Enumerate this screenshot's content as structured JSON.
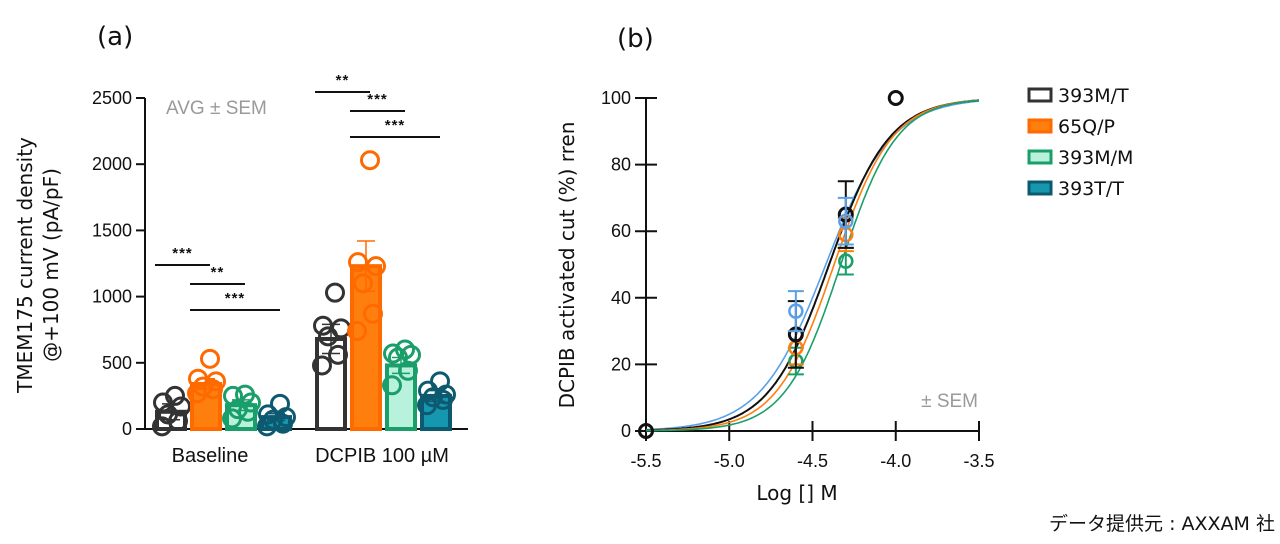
{
  "panels": {
    "a_label": "(a)",
    "b_label": "(b)"
  },
  "source_note": "データ提供元 : AXXAM 社",
  "legend": [
    {
      "label": "393M/T",
      "stroke": "#333333",
      "fill": "#ffffff"
    },
    {
      "label": "65Q/P",
      "stroke": "#ff6a00",
      "fill": "#ff7f0e"
    },
    {
      "label": "393M/M",
      "stroke": "#1a9e6a",
      "fill": "#b8f2dc"
    },
    {
      "label": "393T/T",
      "stroke": "#0d5a70",
      "fill": "#1597b0"
    }
  ],
  "chart_data": [
    {
      "type": "bar",
      "title": "(a)",
      "annotation": "AVG ± SEM",
      "xlabel": "",
      "ylabel_line1": "TMEM175 current density",
      "ylabel_line2": "@+100 mV (pA/pF)",
      "ylim": [
        0,
        2500
      ],
      "yticks": [
        0,
        500,
        1000,
        1500,
        2000,
        2500
      ],
      "categories": [
        "Baseline",
        "DCPIB 100 µM"
      ],
      "series": [
        {
          "name": "393M/T",
          "values": [
            130,
            680
          ],
          "sem": [
            60,
            110
          ],
          "points": [
            [
              20,
              60,
              110,
              170,
              200,
              250
            ],
            [
              480,
              560,
              700,
              760,
              780,
              1030
            ]
          ]
        },
        {
          "name": "65Q/P",
          "values": [
            340,
            1230
          ],
          "sem": [
            40,
            190
          ],
          "points": [
            [
              270,
              300,
              320,
              360,
              380,
              530
            ],
            [
              740,
              870,
              1100,
              1230,
              1260,
              2030
            ]
          ]
        },
        {
          "name": "393M/M",
          "values": [
            180,
            480
          ],
          "sem": [
            40,
            60
          ],
          "points": [
            [
              80,
              130,
              150,
              200,
              250,
              260
            ],
            [
              330,
              440,
              540,
              560,
              570,
              600
            ]
          ]
        },
        {
          "name": "393T/T",
          "values": [
            90,
            250
          ],
          "sem": [
            25,
            40
          ],
          "points": [
            [
              20,
              40,
              70,
              90,
              110,
              190
            ],
            [
              180,
              220,
              240,
              260,
              290,
              360
            ]
          ]
        }
      ],
      "significance": [
        {
          "group": "Baseline",
          "label": "***",
          "from": "393M/T",
          "to": "65Q/P"
        },
        {
          "group": "Baseline",
          "label": "**",
          "from": "65Q/P",
          "to": "393M/M"
        },
        {
          "group": "Baseline",
          "label": "***",
          "from": "65Q/P",
          "to": "393T/T"
        },
        {
          "group": "DCPIB 100 µM",
          "label": "**",
          "from": "393M/T",
          "to": "65Q/P"
        },
        {
          "group": "DCPIB 100 µM",
          "label": "***",
          "from": "65Q/P",
          "to": "393M/M"
        },
        {
          "group": "DCPIB 100 µM",
          "label": "***",
          "from": "65Q/P",
          "to": "393T/T"
        }
      ]
    },
    {
      "type": "line",
      "title": "(b)",
      "annotation": "± SEM",
      "xlabel": "Log [] M",
      "ylabel": "DCPIB activated cut (%) rren",
      "xlim": [
        -5.5,
        -3.5
      ],
      "ylim": [
        0,
        100
      ],
      "xticks": [
        "-5.5",
        "-5.0",
        "-4.5",
        "-4.0",
        "-3.5"
      ],
      "yticks": [
        0,
        20,
        40,
        60,
        80,
        100
      ],
      "series": [
        {
          "name": "blue",
          "color": "#5aa0e8",
          "logEC50": -4.42,
          "hill": 2.2,
          "points": [
            {
              "x": -4.6,
              "y": 36,
              "sem": 6
            },
            {
              "x": -4.3,
              "y": 63,
              "sem": 7
            }
          ]
        },
        {
          "name": "393M/T",
          "color": "#111111",
          "logEC50": -4.4,
          "hill": 2.4,
          "points": [
            {
              "x": -5.5,
              "y": 0,
              "sem": 0
            },
            {
              "x": -4.6,
              "y": 29,
              "sem": 10
            },
            {
              "x": -4.3,
              "y": 65,
              "sem": 10
            },
            {
              "x": -4.0,
              "y": 100,
              "sem": 0
            }
          ]
        },
        {
          "name": "65Q/P",
          "color": "#ff7f0e",
          "logEC50": -4.37,
          "hill": 2.5,
          "points": [
            {
              "x": -4.6,
              "y": 25,
              "sem": 5
            },
            {
              "x": -4.3,
              "y": 59,
              "sem": 5
            }
          ]
        },
        {
          "name": "393M/M",
          "color": "#1a9e6a",
          "logEC50": -4.33,
          "hill": 2.6,
          "points": [
            {
              "x": -4.6,
              "y": 21,
              "sem": 4
            },
            {
              "x": -4.3,
              "y": 51,
              "sem": 4
            }
          ]
        }
      ]
    }
  ]
}
